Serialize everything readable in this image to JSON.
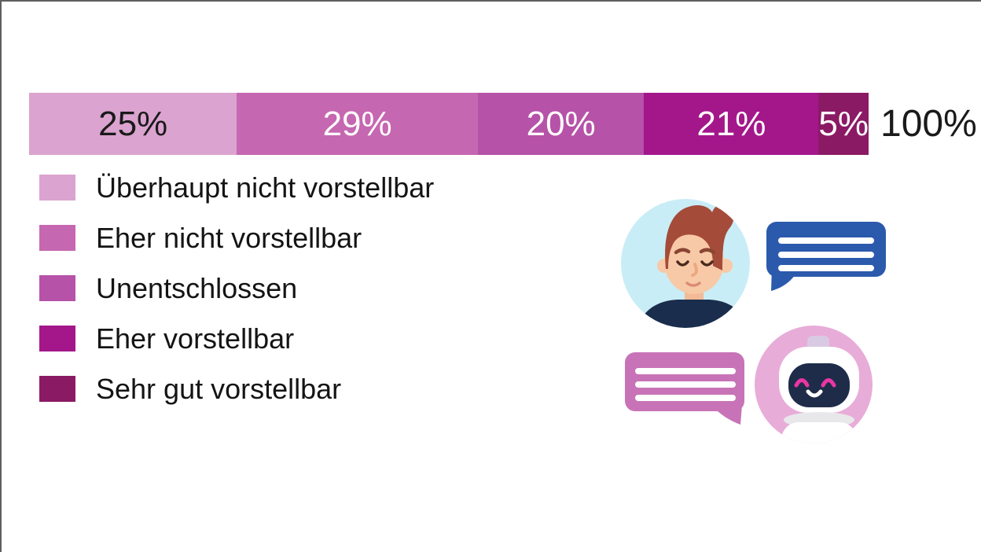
{
  "frame": {
    "border_color": "#5e5f61",
    "background": "#ffffff"
  },
  "chart_data": {
    "type": "bar",
    "subtype": "horizontal-stacked-single-bar",
    "title": "",
    "categories": [
      "Überhaupt nicht vorstellbar",
      "Eher nicht vorstellbar",
      "Unentschlossen",
      "Eher vorstellbar",
      "Sehr gut vorstellbar"
    ],
    "values": [
      25,
      29,
      20,
      21,
      5
    ],
    "value_labels": [
      "25%",
      "29%",
      "20%",
      "21%",
      "5%"
    ],
    "colors": [
      "#dba3cf",
      "#c667b1",
      "#b652a8",
      "#a3178b",
      "#8b1a65"
    ],
    "label_text_colors": [
      "#1a1a1a",
      "#ffffff",
      "#ffffff",
      "#ffffff",
      "#ffffff"
    ],
    "total_label": "100%",
    "xlim": [
      0,
      100
    ],
    "grid": false,
    "legend_position": "bottom-left"
  },
  "legend": {
    "items": [
      {
        "label": "Überhaupt nicht vorstellbar",
        "color": "#dba3cf"
      },
      {
        "label": "Eher nicht vorstellbar",
        "color": "#c667b1"
      },
      {
        "label": "Unentschlossen",
        "color": "#b652a8"
      },
      {
        "label": "Eher vorstellbar",
        "color": "#a3178b"
      },
      {
        "label": "Sehr gut vorstellbar",
        "color": "#8b1a65"
      }
    ]
  },
  "illustration": {
    "description_icons": [
      "person-avatar",
      "chat-bubble-blue",
      "chat-bubble-pink",
      "robot-avatar"
    ],
    "colors": {
      "person_bg": "#c9edf6",
      "hair": "#a54b39",
      "skin": "#f8c9a6",
      "skin_shadow": "#f2ba97",
      "shirt": "#1b2d4d",
      "bubble_blue": "#2b5aad",
      "bubble_pink": "#c873b7",
      "bubble_lines": "#ffffff",
      "robot_bg": "#e8acd8",
      "robot_head": "#ffffff",
      "robot_face": "#1f2c49",
      "robot_accent": "#ea36a4",
      "robot_antenna": "#d9cae3",
      "robot_shadow": "#e8e8eb"
    }
  }
}
